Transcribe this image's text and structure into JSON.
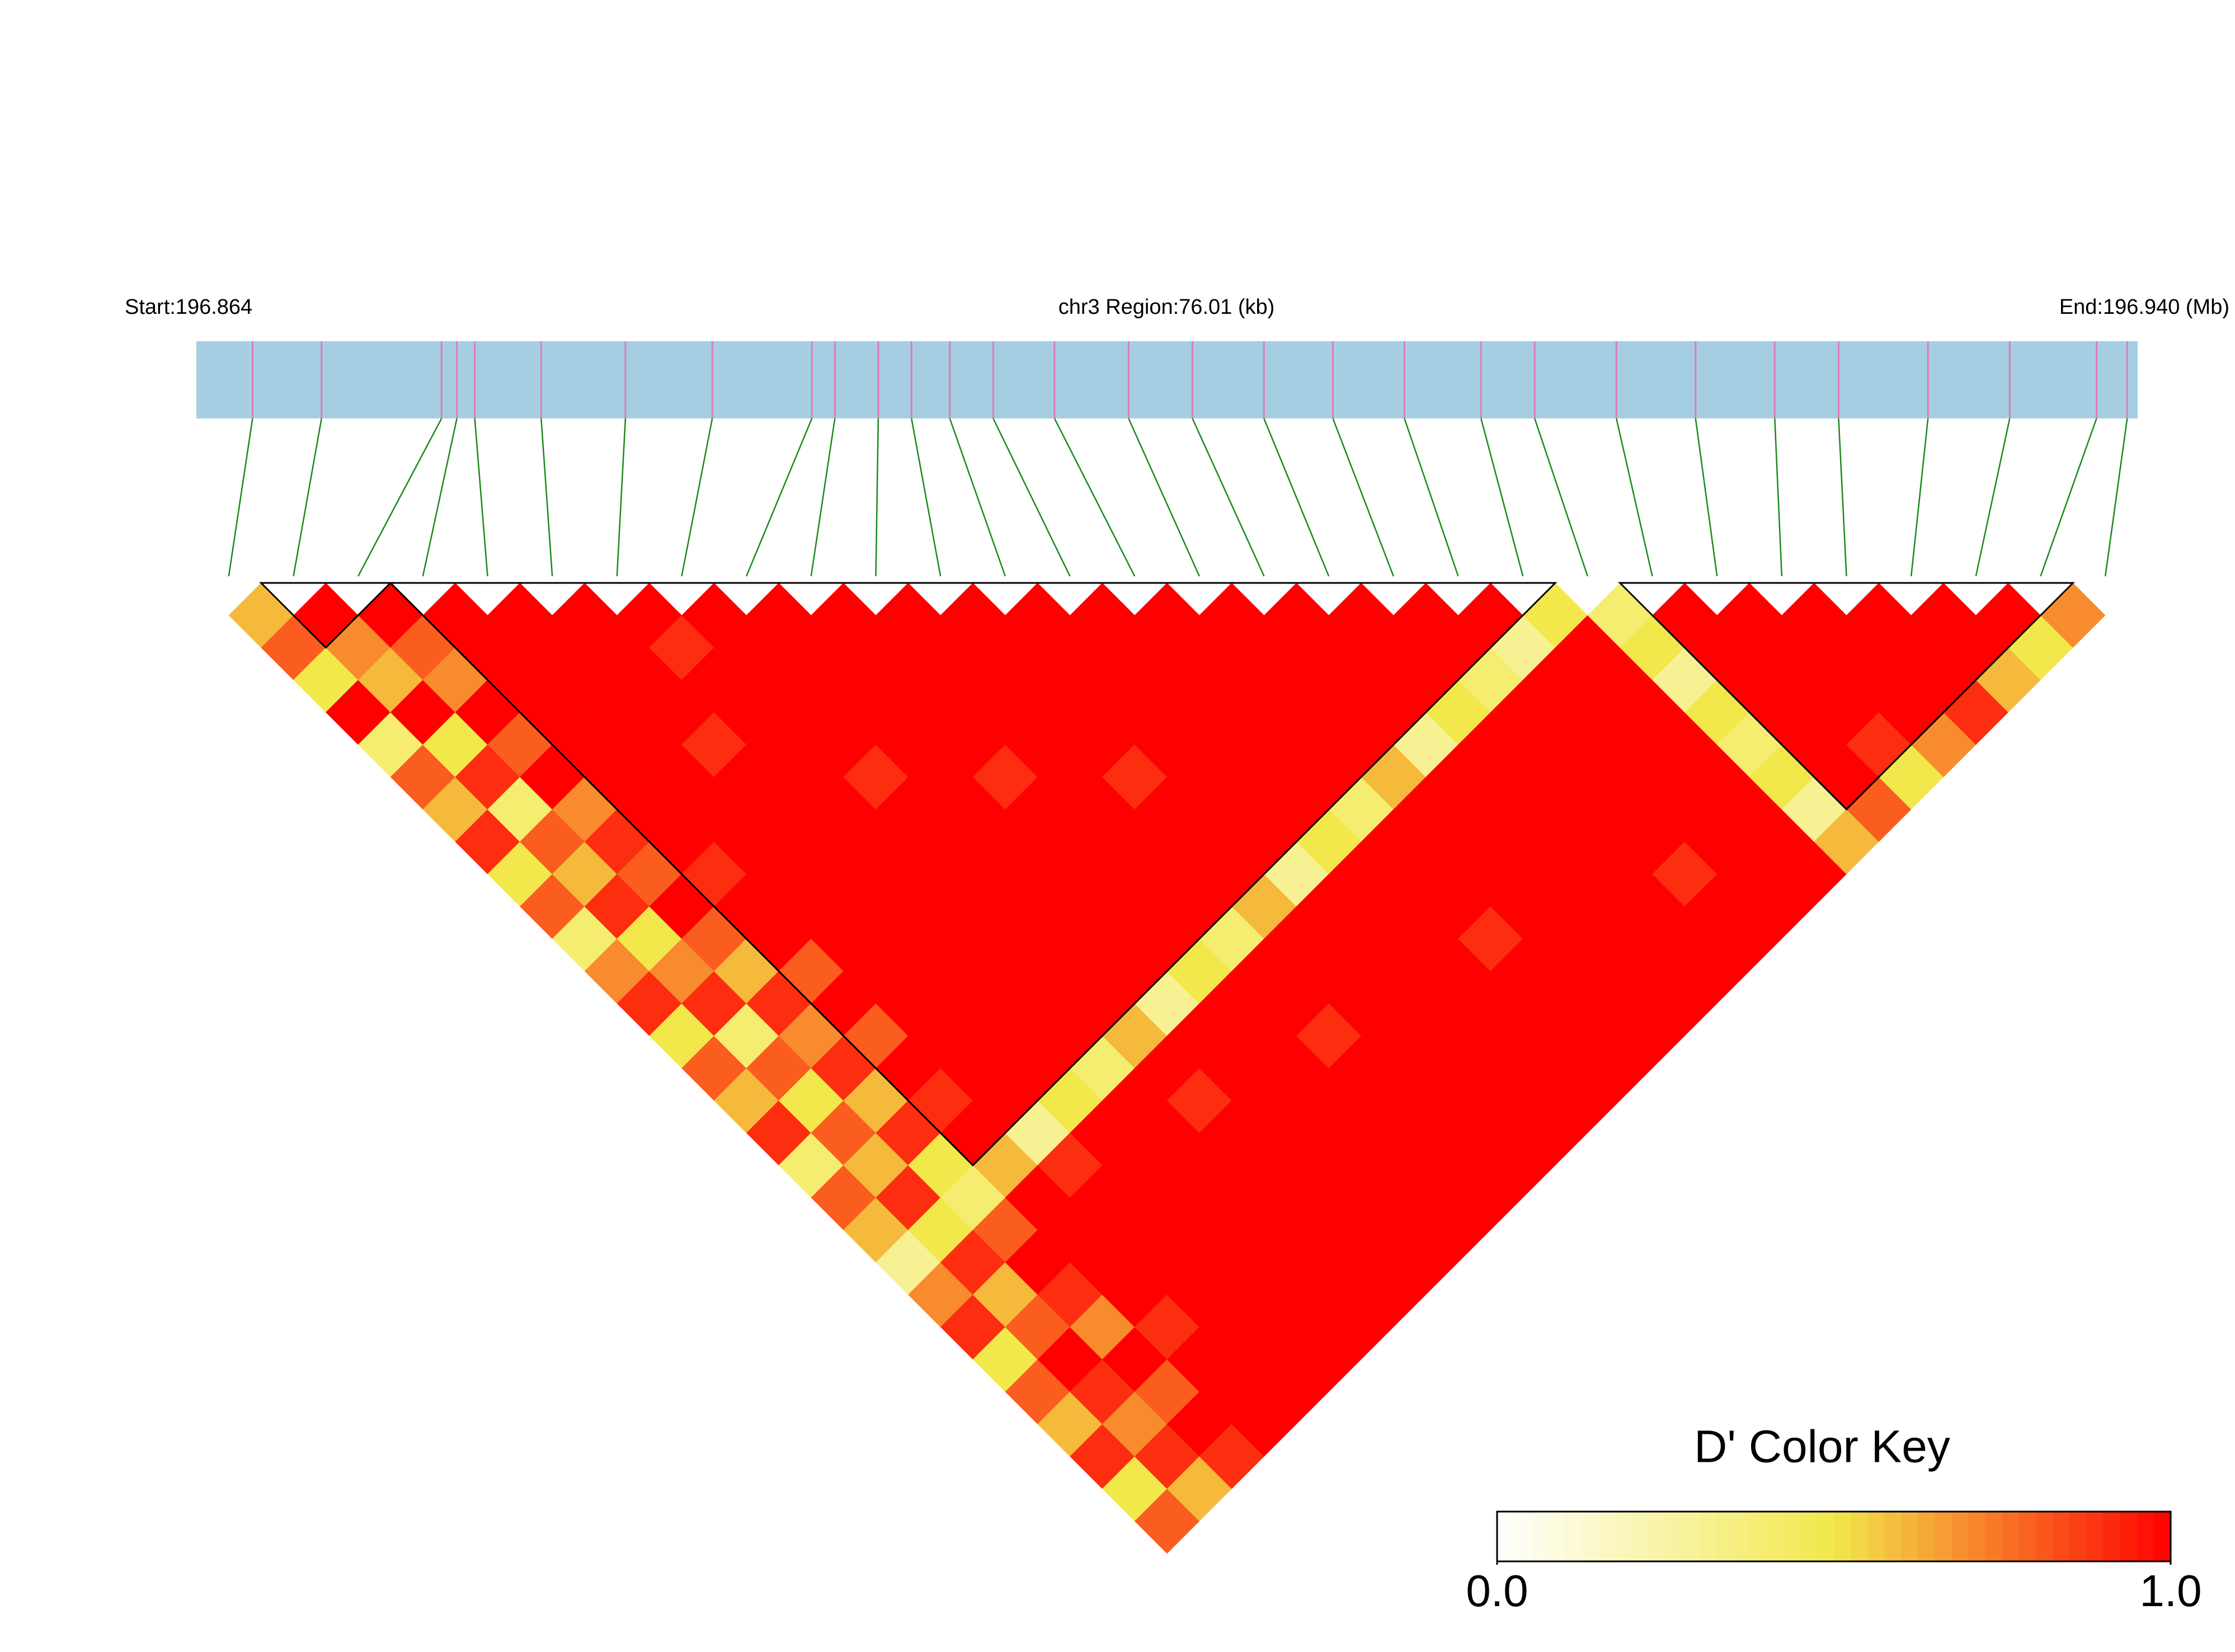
{
  "chart_data": {
    "type": "ld-heatmap",
    "start_label": "Start:196.864",
    "region_label": "chr3 Region:76.01 (kb)",
    "end_label": "End:196.940 (Mb)",
    "xlim": [
      0,
      76.01
    ],
    "snp_positions": [
      2.2,
      4.9,
      9.6,
      10.2,
      10.9,
      13.5,
      16.8,
      20.2,
      24.1,
      25.0,
      26.7,
      28.0,
      29.5,
      31.2,
      33.6,
      36.5,
      39.0,
      41.8,
      44.5,
      47.3,
      50.3,
      52.4,
      55.6,
      58.7,
      61.8,
      64.3,
      67.8,
      71.0,
      74.4,
      75.6
    ],
    "track_color": "#a6cee3",
    "marker_color": "#e07bb5",
    "connector_color": "#1a8a1a",
    "dprime": [
      [],
      [
        0.6
      ],
      [
        0.8,
        1
      ],
      [
        0.5,
        0.7,
        1
      ],
      [
        1,
        0.6,
        0.8,
        1
      ],
      [
        0.4,
        1,
        0.7,
        1,
        1
      ],
      [
        0.8,
        0.5,
        1,
        1,
        1,
        1
      ],
      [
        0.6,
        0.9,
        0.8,
        1,
        1,
        1,
        1
      ],
      [
        0.9,
        0.4,
        1,
        1,
        1,
        1,
        0.9,
        1
      ],
      [
        0.5,
        0.8,
        0.7,
        1,
        1,
        1,
        1,
        1,
        1
      ],
      [
        0.8,
        0.6,
        0.9,
        1,
        1,
        0.9,
        1,
        1,
        1,
        1
      ],
      [
        0.4,
        0.9,
        0.8,
        1,
        1,
        1,
        1,
        1,
        1,
        1,
        1
      ],
      [
        0.7,
        0.5,
        1,
        0.9,
        1,
        1,
        1,
        1,
        1,
        1,
        1,
        1
      ],
      [
        0.9,
        0.7,
        0.8,
        1,
        1,
        1,
        1,
        0.9,
        1,
        1,
        1,
        1,
        1
      ],
      [
        0.5,
        0.9,
        0.6,
        1,
        1,
        1,
        1,
        1,
        1,
        1,
        1,
        1,
        1,
        1
      ],
      [
        0.8,
        0.4,
        0.9,
        0.8,
        1,
        1,
        1,
        1,
        1,
        0.9,
        1,
        1,
        1,
        1,
        1
      ],
      [
        0.6,
        0.8,
        0.7,
        1,
        1,
        1,
        1,
        1,
        1,
        1,
        1,
        1,
        1,
        1,
        1,
        1
      ],
      [
        0.9,
        0.5,
        0.9,
        0.8,
        1,
        1,
        1,
        1,
        1,
        1,
        1,
        0.9,
        1,
        1,
        1,
        1,
        1
      ],
      [
        0.4,
        0.8,
        0.6,
        1,
        1,
        1,
        1,
        1,
        1,
        1,
        1,
        1,
        1,
        1,
        1,
        1,
        1,
        1
      ],
      [
        0.8,
        0.6,
        0.9,
        0.9,
        1,
        1,
        1,
        1,
        1,
        1,
        1,
        1,
        1,
        1,
        1,
        1,
        1,
        1,
        1
      ],
      [
        0.6,
        0.9,
        0.5,
        1,
        1,
        1,
        1,
        1,
        1,
        1,
        1,
        1,
        1,
        1,
        1,
        1,
        1,
        1,
        1,
        1
      ],
      [
        0.3,
        0.5,
        0.4,
        0.6,
        0.3,
        0.5,
        0.4,
        0.6,
        0.3,
        0.5,
        0.4,
        0.6,
        0.3,
        0.5,
        0.4,
        0.6,
        0.3,
        0.5,
        0.4,
        0.3,
        0.5
      ],
      [
        0.7,
        0.9,
        0.8,
        1,
        0.9,
        1,
        1,
        1,
        1,
        1,
        1,
        1,
        1,
        1,
        1,
        1,
        1,
        1,
        1,
        1,
        1,
        0.4
      ],
      [
        0.9,
        0.6,
        1,
        1,
        1,
        1,
        1,
        0.9,
        1,
        1,
        1,
        1,
        1,
        1,
        1,
        1,
        1,
        1,
        1,
        1,
        1,
        0.5,
        1
      ],
      [
        0.5,
        0.8,
        0.9,
        1,
        1,
        1,
        1,
        1,
        1,
        1,
        0.9,
        1,
        1,
        1,
        1,
        1,
        1,
        1,
        1,
        1,
        1,
        0.3,
        1,
        1
      ],
      [
        0.8,
        1,
        0.7,
        1,
        1,
        1,
        1,
        1,
        1,
        1,
        1,
        1,
        1,
        1,
        0.9,
        1,
        1,
        1,
        1,
        1,
        1,
        0.5,
        1,
        1,
        1
      ],
      [
        0.6,
        0.9,
        1,
        0.9,
        1,
        1,
        1,
        1,
        1,
        1,
        1,
        1,
        1,
        1,
        1,
        1,
        1,
        1,
        1,
        1,
        1,
        0.4,
        1,
        1,
        1,
        1
      ],
      [
        0.9,
        0.7,
        0.8,
        1,
        1,
        1,
        1,
        1,
        1,
        1,
        1,
        1,
        1,
        1,
        1,
        1,
        1,
        1,
        0.9,
        1,
        1,
        0.5,
        1,
        1,
        1,
        1,
        1
      ],
      [
        0.5,
        0.9,
        1,
        1,
        1,
        1,
        1,
        1,
        1,
        1,
        1,
        1,
        1,
        1,
        1,
        1,
        1,
        1,
        1,
        1,
        1,
        0.3,
        1,
        0.9,
        1,
        1,
        1,
        1
      ],
      [
        0.8,
        0.6,
        0.9,
        1,
        1,
        1,
        1,
        1,
        1,
        1,
        1,
        1,
        1,
        1,
        1,
        1,
        1,
        1,
        1,
        1,
        1,
        0.6,
        0.8,
        0.5,
        0.7,
        0.9,
        0.6,
        0.5,
        0.7
      ]
    ],
    "blocks": [
      [
        1,
        2
      ],
      [
        3,
        20
      ],
      [
        22,
        28
      ]
    ],
    "colorscale": [
      "#ffffff",
      "#f2e84b",
      "#ff0000"
    ],
    "key_title": "D' Color Key",
    "clim": [
      0,
      1
    ],
    "key_ticks": [
      {
        "value": 0,
        "label": "0.0"
      },
      {
        "value": 1,
        "label": "1.0"
      }
    ]
  }
}
